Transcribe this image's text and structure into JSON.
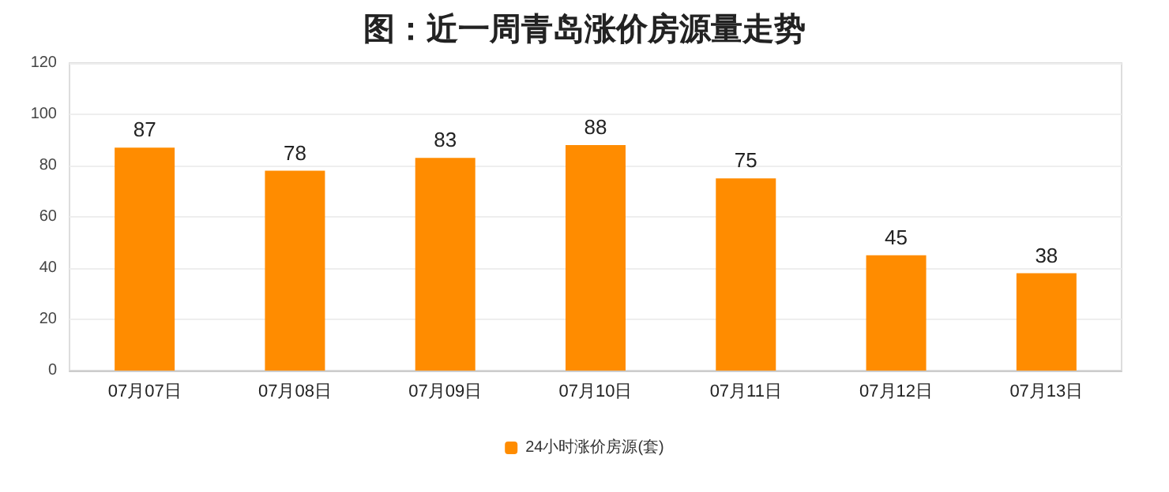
{
  "chart_data": {
    "type": "bar",
    "title": "图：近一周青岛涨价房源量走势",
    "categories": [
      "07月07日",
      "07月08日",
      "07月09日",
      "07月10日",
      "07月11日",
      "07月12日",
      "07月13日"
    ],
    "series": [
      {
        "name": "24小时涨价房源(套)",
        "color": "#ff8c00",
        "values": [
          87,
          78,
          83,
          88,
          75,
          45,
          38
        ]
      }
    ],
    "ylim": [
      0,
      120
    ],
    "yticks": [
      0,
      20,
      40,
      60,
      80,
      100,
      120
    ],
    "grid": "y",
    "legend": "bottom",
    "data_labels": true
  }
}
